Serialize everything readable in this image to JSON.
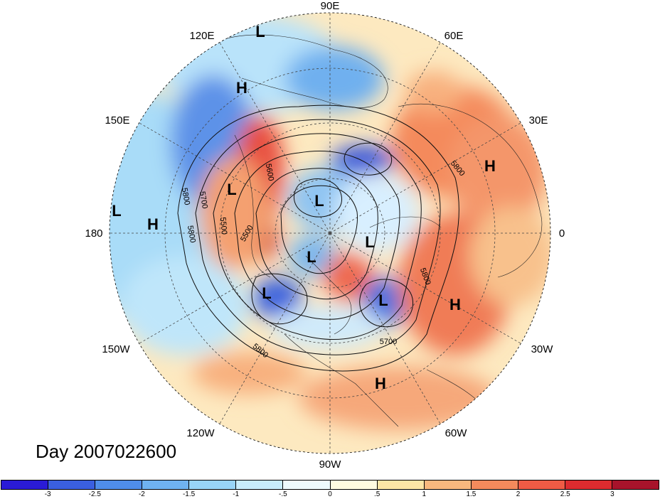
{
  "title": "Day 2007022600",
  "longitude_labels": [
    "90E",
    "60E",
    "30E",
    "0",
    "30W",
    "60W",
    "90W",
    "120W",
    "150W",
    "180",
    "150E",
    "120E"
  ],
  "pressure_labels": [
    {
      "text": "L",
      "id": "low-ne-asia-top"
    },
    {
      "text": "H",
      "id": "high-ne-asia"
    },
    {
      "text": "H",
      "id": "high-europe"
    },
    {
      "text": "L",
      "id": "low-bering"
    },
    {
      "text": "L",
      "id": "low-pacific-west"
    },
    {
      "text": "H",
      "id": "high-pacific"
    },
    {
      "text": "L",
      "id": "low-polar-1"
    },
    {
      "text": "L",
      "id": "low-polar-2"
    },
    {
      "text": "L",
      "id": "low-arctic-canada"
    },
    {
      "text": "L",
      "id": "low-alaska"
    },
    {
      "text": "L",
      "id": "low-n-atlantic"
    },
    {
      "text": "H",
      "id": "high-atlantic"
    },
    {
      "text": "H",
      "id": "high-caribbean"
    }
  ],
  "contour_labels": [
    "5800",
    "5700",
    "5500",
    "5600",
    "5500",
    "5800",
    "5800",
    "5700",
    "5800"
  ],
  "colorbar": {
    "colors": [
      "#2a1bd6",
      "#3a5fe0",
      "#4f8de9",
      "#6fb2f0",
      "#98d4f7",
      "#c8ecfb",
      "#eefafd",
      "#fffbe0",
      "#fde6a6",
      "#f8b87e",
      "#f48a5c",
      "#ef5b45",
      "#dc2b2f",
      "#a8132b"
    ],
    "labels": [
      "-3",
      "-2.5",
      "-2",
      "-1.5",
      "-1",
      "-.5",
      "0",
      ".5",
      "1",
      "1.5",
      "2",
      "2.5",
      "3"
    ]
  }
}
